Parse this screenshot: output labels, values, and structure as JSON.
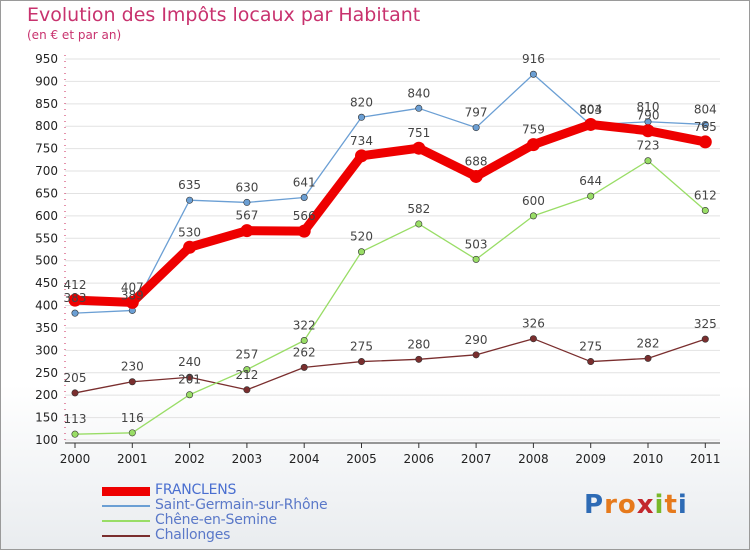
{
  "header": {
    "title": "Evolution des Impôts locaux par Habitant",
    "subtitle": "(en € et par an)"
  },
  "logo": {
    "text": "Proxiti",
    "letters": [
      "P",
      "r",
      "o",
      "x",
      "i",
      "t",
      "i"
    ],
    "colors": [
      "#2e6bb5",
      "#e67a1c",
      "#e67a1c",
      "#c3282d",
      "#79b829",
      "#e67a1c",
      "#2e6bb5"
    ]
  },
  "chart_data": {
    "type": "line",
    "title": "Evolution des Impôts locaux par Habitant",
    "subtitle": "(en € et par an)",
    "xlabel": "",
    "ylabel": "",
    "categories": [
      "2000",
      "2001",
      "2002",
      "2003",
      "2004",
      "2005",
      "2006",
      "2007",
      "2008",
      "2009",
      "2010",
      "2011"
    ],
    "ylim": [
      100,
      950
    ],
    "yticks": [
      100,
      150,
      200,
      250,
      300,
      350,
      400,
      450,
      500,
      550,
      600,
      650,
      700,
      750,
      800,
      850,
      900,
      950
    ],
    "grid": "horizontal",
    "legend_position": "bottom-left",
    "series": [
      {
        "name": "FRANCLENS",
        "color": "#ee0000",
        "values": [
          412,
          407,
          530,
          567,
          566,
          734,
          751,
          688,
          759,
          804,
          790,
          765
        ],
        "labels": [
          "412",
          "407",
          "530",
          "567",
          "566",
          "734",
          "751",
          "688",
          "759",
          "804",
          "790",
          "765"
        ]
      },
      {
        "name": "Saint-Germain-sur-Rhône",
        "color": "#6b9fd4",
        "values": [
          383,
          389,
          635,
          630,
          641,
          820,
          840,
          797,
          916,
          803,
          810,
          804
        ],
        "labels": [
          "383",
          "389",
          "635",
          "630",
          "641",
          "820",
          "840",
          "797",
          "916",
          "803",
          "810",
          "804"
        ]
      },
      {
        "name": "Chêne-en-Semine",
        "color": "#99dd66",
        "values": [
          113,
          116,
          201,
          257,
          322,
          520,
          582,
          503,
          600,
          644,
          723,
          612
        ],
        "labels": [
          "113",
          "116",
          "201",
          "257",
          "322",
          "520",
          "582",
          "503",
          "600",
          "644",
          "723",
          "612"
        ]
      },
      {
        "name": "Challonges",
        "color": "#7a2e2e",
        "values": [
          205,
          230,
          240,
          212,
          262,
          275,
          280,
          290,
          326,
          275,
          282,
          325
        ],
        "labels": [
          "205",
          "230",
          "240",
          "212",
          "262",
          "275",
          "280",
          "290",
          "326",
          "275",
          "282",
          "325"
        ]
      }
    ]
  }
}
